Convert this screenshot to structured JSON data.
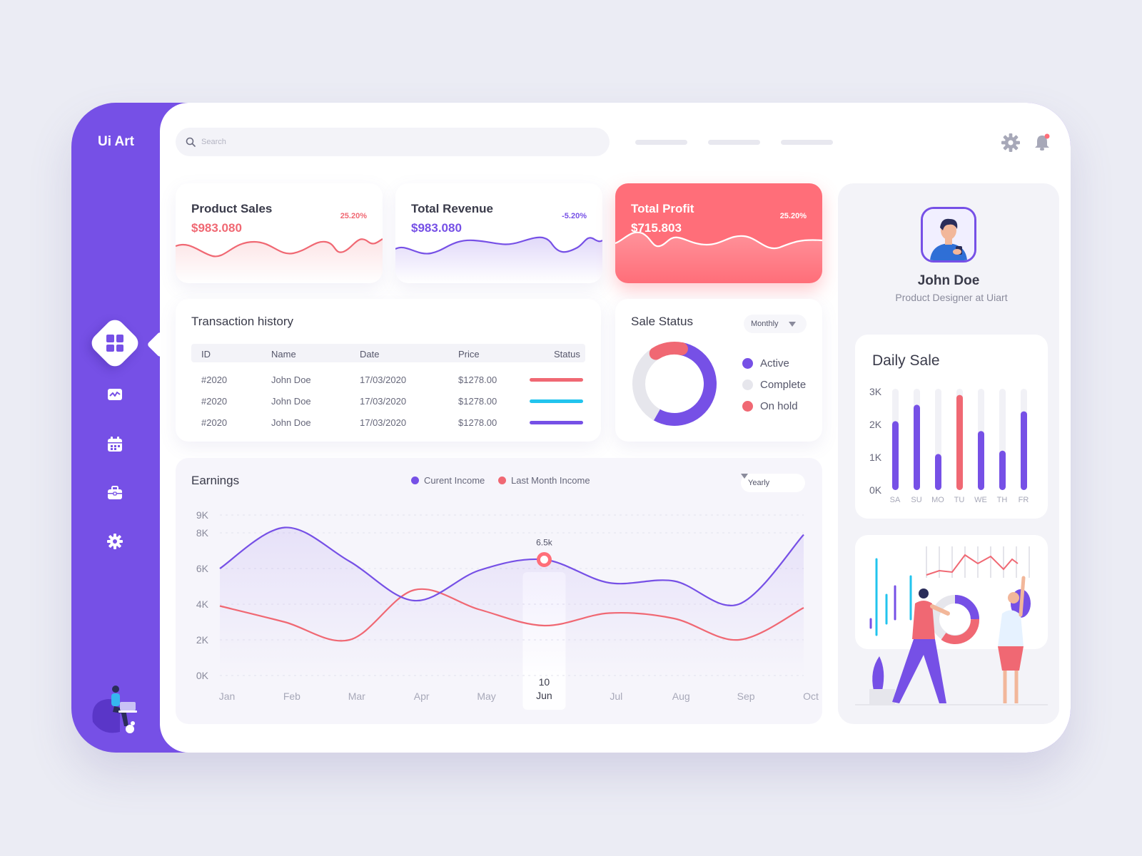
{
  "app": {
    "name": "Ui Art"
  },
  "sidebar": {
    "items": [
      {
        "id": "dashboard",
        "icon": "dashboard-icon",
        "active": true
      },
      {
        "id": "activity",
        "icon": "activity-chart-icon"
      },
      {
        "id": "calendar",
        "icon": "calendar-icon"
      },
      {
        "id": "portfolio",
        "icon": "briefcase-icon"
      },
      {
        "id": "settings",
        "icon": "gear-icon"
      }
    ]
  },
  "search": {
    "placeholder": "Search"
  },
  "stats": [
    {
      "title": "Product Sales",
      "value": "$983.080",
      "change": "25.20%",
      "color": "#f06873"
    },
    {
      "title": "Total Revenue",
      "value": "$983.080",
      "change": "-5.20%",
      "color": "#7650e6"
    },
    {
      "title": "Total Profit",
      "value": "$715.803",
      "change": "25.20%",
      "color": "#ff6e79"
    }
  ],
  "transactions": {
    "title": "Transaction history",
    "columns": [
      "ID",
      "Name",
      "Date",
      "Price",
      "Status"
    ],
    "rows": [
      {
        "id": "#2020",
        "name": "John Doe",
        "date": "17/03/2020",
        "price": "$1278.00",
        "status_color": "#f06873"
      },
      {
        "id": "#2020",
        "name": "John Doe",
        "date": "17/03/2020",
        "price": "$1278.00",
        "status_color": "#22c4ee"
      },
      {
        "id": "#2020",
        "name": "John Doe",
        "date": "17/03/2020",
        "price": "$1278.00",
        "status_color": "#7650e6"
      }
    ]
  },
  "sale_status": {
    "title": "Sale Status",
    "period": "Monthly",
    "legend": [
      {
        "label": "Active",
        "color": "#7650e6"
      },
      {
        "label": "Complete",
        "color": "#e6e6ec"
      },
      {
        "label": "On hold",
        "color": "#f06873"
      }
    ],
    "chart_data": {
      "type": "pie",
      "labels": [
        "Active",
        "Complete",
        "On hold"
      ],
      "values": [
        55,
        33,
        12
      ]
    }
  },
  "earnings": {
    "title": "Earnings",
    "period": "Yearly",
    "legend": [
      {
        "label": "Curent Income",
        "color": "#7650e6"
      },
      {
        "label": "Last Month Income",
        "color": "#f06873"
      }
    ],
    "highlight": {
      "value_label": "6.5k",
      "day": "10",
      "month": "Jun"
    },
    "chart_data": {
      "type": "line",
      "x": [
        "Jan",
        "Feb",
        "Mar",
        "Apr",
        "May",
        "Jun",
        "Jul",
        "Aug",
        "Sep",
        "Oct"
      ],
      "y_ticks": [
        "0K",
        "2K",
        "4K",
        "6K",
        "8K",
        "9K"
      ],
      "series": [
        {
          "name": "Curent Income",
          "values": [
            6.0,
            8.3,
            6.4,
            4.2,
            5.9,
            6.5,
            5.2,
            5.3,
            4.0,
            7.9
          ]
        },
        {
          "name": "Last Month Income",
          "values": [
            3.9,
            3.0,
            2.0,
            4.8,
            3.7,
            2.8,
            3.5,
            3.2,
            2.0,
            3.8
          ]
        }
      ]
    }
  },
  "profile": {
    "name": "John Doe",
    "role": "Product Designer at Uiart"
  },
  "daily_sale": {
    "title": "Daily Sale",
    "chart_data": {
      "type": "bar",
      "categories": [
        "SA",
        "SU",
        "MO",
        "TU",
        "WE",
        "TH",
        "FR"
      ],
      "values": [
        2.1,
        2.6,
        1.1,
        2.9,
        1.8,
        1.2,
        2.4
      ],
      "highlight": "TU",
      "y_ticks": [
        "0K",
        "1K",
        "2K",
        "3K"
      ],
      "ylim": [
        0,
        3.2
      ]
    }
  }
}
